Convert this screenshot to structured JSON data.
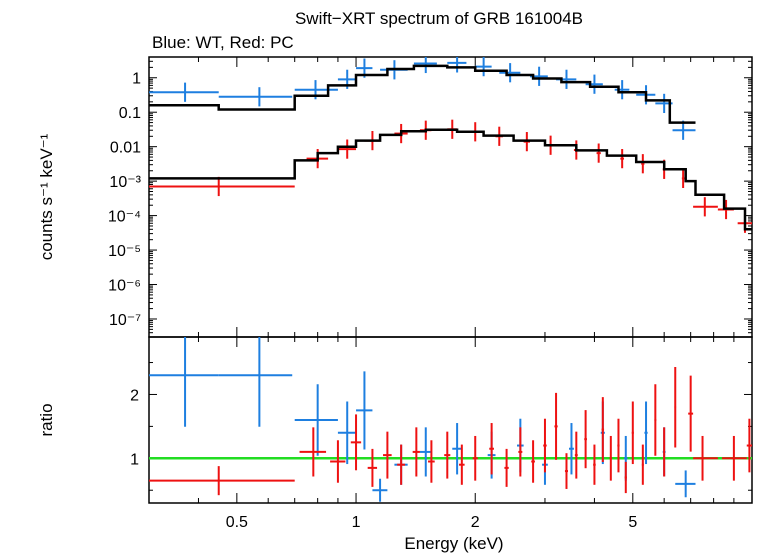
{
  "chart_data": {
    "type": "scatter",
    "title": "Swift−XRT spectrum of GRB 161004B",
    "subtitle": "Blue: WT, Red: PC",
    "xlabel": "Energy (keV)",
    "xscale": "log",
    "xlim": [
      0.3,
      10
    ],
    "xticks": [
      {
        "value": 0.5,
        "label": "0.5"
      },
      {
        "value": 1,
        "label": "1"
      },
      {
        "value": 2,
        "label": "2"
      },
      {
        "value": 5,
        "label": "5"
      }
    ],
    "colors": {
      "wt": "#1e7fe0",
      "pc": "#ee1111",
      "model": "#000000",
      "unity": "#22dd22"
    },
    "panels": {
      "spectrum": {
        "ylabel": "counts s⁻¹ keV⁻¹",
        "yscale": "log",
        "ylim": [
          3e-08,
          4
        ],
        "yticks": [
          {
            "value": 1,
            "label": "1"
          },
          {
            "value": 0.1,
            "label": "0.1"
          },
          {
            "value": 0.01,
            "label": "0.01"
          },
          {
            "value": 0.001,
            "label": "10⁻³"
          },
          {
            "value": 0.0001,
            "label": "10⁻⁴"
          },
          {
            "value": 1e-05,
            "label": "10⁻⁵"
          },
          {
            "value": 1e-06,
            "label": "10⁻⁶"
          },
          {
            "value": 1e-07,
            "label": "10⁻⁷"
          }
        ],
        "series": [
          {
            "name": "WT",
            "color": "#1e7fe0",
            "points": [
              {
                "x": 0.37,
                "xlo": 0.3,
                "xhi": 0.45,
                "y": 0.38
              },
              {
                "x": 0.57,
                "xlo": 0.45,
                "xhi": 0.69,
                "y": 0.28
              },
              {
                "x": 0.79,
                "xlo": 0.7,
                "xhi": 0.9,
                "y": 0.45
              },
              {
                "x": 0.95,
                "xlo": 0.9,
                "xhi": 1.0,
                "y": 0.9
              },
              {
                "x": 1.05,
                "xlo": 1.0,
                "xhi": 1.1,
                "y": 1.9
              },
              {
                "x": 1.25,
                "xlo": 1.15,
                "xhi": 1.35,
                "y": 1.7
              },
              {
                "x": 1.5,
                "xlo": 1.4,
                "xhi": 1.6,
                "y": 2.6
              },
              {
                "x": 1.8,
                "xlo": 1.7,
                "xhi": 1.9,
                "y": 2.7
              },
              {
                "x": 2.1,
                "xlo": 2.0,
                "xhi": 2.2,
                "y": 2.1
              },
              {
                "x": 2.45,
                "xlo": 2.3,
                "xhi": 2.6,
                "y": 1.4
              },
              {
                "x": 2.9,
                "xlo": 2.75,
                "xhi": 3.05,
                "y": 1.1
              },
              {
                "x": 3.4,
                "xlo": 3.2,
                "xhi": 3.6,
                "y": 0.9
              },
              {
                "x": 4.0,
                "xlo": 3.8,
                "xhi": 4.2,
                "y": 0.65
              },
              {
                "x": 4.7,
                "xlo": 4.5,
                "xhi": 4.9,
                "y": 0.45
              },
              {
                "x": 5.4,
                "xlo": 5.1,
                "xhi": 5.7,
                "y": 0.32
              },
              {
                "x": 6.0,
                "xlo": 5.7,
                "xhi": 6.3,
                "y": 0.18
              },
              {
                "x": 6.7,
                "xlo": 6.3,
                "xhi": 7.2,
                "y": 0.03
              }
            ]
          },
          {
            "name": "PC",
            "color": "#ee1111",
            "points": [
              {
                "x": 0.45,
                "xlo": 0.3,
                "xhi": 0.7,
                "y": 0.0007
              },
              {
                "x": 0.8,
                "xlo": 0.75,
                "xhi": 0.85,
                "y": 0.0045
              },
              {
                "x": 0.95,
                "xlo": 0.9,
                "xhi": 1.0,
                "y": 0.0085
              },
              {
                "x": 1.1,
                "xlo": 1.05,
                "xhi": 1.15,
                "y": 0.015
              },
              {
                "x": 1.3,
                "xlo": 1.25,
                "xhi": 1.35,
                "y": 0.024
              },
              {
                "x": 1.5,
                "xlo": 1.45,
                "xhi": 1.55,
                "y": 0.03
              },
              {
                "x": 1.75,
                "xlo": 1.7,
                "xhi": 1.8,
                "y": 0.032
              },
              {
                "x": 2.0,
                "xlo": 1.95,
                "xhi": 2.05,
                "y": 0.027
              },
              {
                "x": 2.3,
                "xlo": 2.25,
                "xhi": 2.35,
                "y": 0.02
              },
              {
                "x": 2.7,
                "xlo": 2.65,
                "xhi": 2.75,
                "y": 0.014
              },
              {
                "x": 3.1,
                "xlo": 3.05,
                "xhi": 3.15,
                "y": 0.011
              },
              {
                "x": 3.6,
                "xlo": 3.55,
                "xhi": 3.65,
                "y": 0.008
              },
              {
                "x": 4.1,
                "xlo": 4.05,
                "xhi": 4.15,
                "y": 0.0065
              },
              {
                "x": 4.7,
                "xlo": 4.65,
                "xhi": 4.75,
                "y": 0.0045
              },
              {
                "x": 5.3,
                "xlo": 5.25,
                "xhi": 5.35,
                "y": 0.0032
              },
              {
                "x": 6.0,
                "xlo": 5.95,
                "xhi": 6.05,
                "y": 0.0022
              },
              {
                "x": 6.7,
                "xlo": 6.65,
                "xhi": 6.75,
                "y": 0.0012
              },
              {
                "x": 7.6,
                "xlo": 7.1,
                "xhi": 8.2,
                "y": 0.00018
              },
              {
                "x": 8.6,
                "xlo": 8.2,
                "xhi": 9.0,
                "y": 0.00015
              },
              {
                "x": 9.6,
                "xlo": 9.2,
                "xhi": 10.0,
                "y": 6e-05
              }
            ]
          }
        ]
      },
      "ratio": {
        "ylabel": "ratio",
        "yscale": "linear",
        "ylim": [
          0.3,
          2.9
        ],
        "yticks": [
          {
            "value": 1,
            "label": "1"
          },
          {
            "value": 2,
            "label": "2"
          }
        ],
        "reference_line": 1,
        "series": [
          {
            "name": "WT",
            "color": "#1e7fe0",
            "points": [
              {
                "x": 0.37,
                "xlo": 0.3,
                "xhi": 0.45,
                "y": 2.3
              },
              {
                "x": 0.57,
                "xlo": 0.45,
                "xhi": 0.69,
                "y": 2.3
              },
              {
                "x": 0.8,
                "xlo": 0.7,
                "xhi": 0.9,
                "y": 1.6
              },
              {
                "x": 0.95,
                "xlo": 0.9,
                "xhi": 1.0,
                "y": 1.4
              },
              {
                "x": 1.05,
                "xlo": 1.0,
                "xhi": 1.1,
                "y": 1.75
              },
              {
                "x": 1.15,
                "xlo": 1.1,
                "xhi": 1.2,
                "y": 0.5
              },
              {
                "x": 1.3,
                "xlo": 1.25,
                "xhi": 1.35,
                "y": 0.9
              },
              {
                "x": 1.5,
                "xlo": 1.45,
                "xhi": 1.55,
                "y": 1.1
              },
              {
                "x": 1.8,
                "xlo": 1.75,
                "xhi": 1.85,
                "y": 1.15
              },
              {
                "x": 2.2,
                "xlo": 2.15,
                "xhi": 2.25,
                "y": 1.05
              },
              {
                "x": 2.6,
                "xlo": 2.55,
                "xhi": 2.65,
                "y": 1.2
              },
              {
                "x": 3.0,
                "xlo": 2.95,
                "xhi": 3.05,
                "y": 0.9
              },
              {
                "x": 3.5,
                "xlo": 3.45,
                "xhi": 3.55,
                "y": 1.15
              },
              {
                "x": 4.2,
                "xlo": 4.15,
                "xhi": 4.25,
                "y": 1.4
              },
              {
                "x": 4.8,
                "xlo": 4.75,
                "xhi": 4.85,
                "y": 1.0
              },
              {
                "x": 5.4,
                "xlo": 5.35,
                "xhi": 5.45,
                "y": 1.4
              },
              {
                "x": 6.0,
                "xlo": 5.95,
                "xhi": 6.05,
                "y": 1.1
              },
              {
                "x": 6.8,
                "xlo": 6.4,
                "xhi": 7.2,
                "y": 0.6
              }
            ]
          },
          {
            "name": "PC",
            "color": "#ee1111",
            "points": [
              {
                "x": 0.45,
                "xlo": 0.3,
                "xhi": 0.7,
                "y": 0.65
              },
              {
                "x": 0.78,
                "xlo": 0.72,
                "xhi": 0.84,
                "y": 1.1
              },
              {
                "x": 0.9,
                "xlo": 0.86,
                "xhi": 0.94,
                "y": 0.95
              },
              {
                "x": 1.0,
                "xlo": 0.97,
                "xhi": 1.03,
                "y": 1.25
              },
              {
                "x": 1.1,
                "xlo": 1.07,
                "xhi": 1.13,
                "y": 0.85
              },
              {
                "x": 1.2,
                "xlo": 1.17,
                "xhi": 1.23,
                "y": 1.05
              },
              {
                "x": 1.3,
                "xlo": 1.27,
                "xhi": 1.33,
                "y": 0.9
              },
              {
                "x": 1.42,
                "xlo": 1.39,
                "xhi": 1.45,
                "y": 1.1
              },
              {
                "x": 1.55,
                "xlo": 1.52,
                "xhi": 1.58,
                "y": 0.95
              },
              {
                "x": 1.7,
                "xlo": 1.67,
                "xhi": 1.73,
                "y": 1.05
              },
              {
                "x": 1.85,
                "xlo": 1.82,
                "xhi": 1.88,
                "y": 0.9
              },
              {
                "x": 2.0,
                "xlo": 1.97,
                "xhi": 2.03,
                "y": 1.0
              },
              {
                "x": 2.2,
                "xlo": 2.17,
                "xhi": 2.23,
                "y": 1.15
              },
              {
                "x": 2.4,
                "xlo": 2.37,
                "xhi": 2.43,
                "y": 0.85
              },
              {
                "x": 2.6,
                "xlo": 2.57,
                "xhi": 2.63,
                "y": 1.1
              },
              {
                "x": 2.8,
                "xlo": 2.77,
                "xhi": 2.83,
                "y": 0.95
              },
              {
                "x": 3.0,
                "xlo": 2.97,
                "xhi": 3.03,
                "y": 1.2
              },
              {
                "x": 3.2,
                "xlo": 3.17,
                "xhi": 3.23,
                "y": 1.5
              },
              {
                "x": 3.4,
                "xlo": 3.37,
                "xhi": 3.43,
                "y": 0.8
              },
              {
                "x": 3.6,
                "xlo": 3.57,
                "xhi": 3.63,
                "y": 1.05
              },
              {
                "x": 3.8,
                "xlo": 3.77,
                "xhi": 3.83,
                "y": 1.3
              },
              {
                "x": 4.0,
                "xlo": 3.97,
                "xhi": 4.03,
                "y": 0.9
              },
              {
                "x": 4.2,
                "xlo": 4.17,
                "xhi": 4.23,
                "y": 1.45
              },
              {
                "x": 4.4,
                "xlo": 4.37,
                "xhi": 4.43,
                "y": 1.0
              },
              {
                "x": 4.6,
                "xlo": 4.57,
                "xhi": 4.63,
                "y": 1.2
              },
              {
                "x": 4.8,
                "xlo": 4.77,
                "xhi": 4.83,
                "y": 0.7
              },
              {
                "x": 5.0,
                "xlo": 4.97,
                "xhi": 5.03,
                "y": 1.4
              },
              {
                "x": 5.3,
                "xlo": 5.27,
                "xhi": 5.33,
                "y": 0.9
              },
              {
                "x": 5.7,
                "xlo": 5.67,
                "xhi": 5.73,
                "y": 1.6
              },
              {
                "x": 6.0,
                "xlo": 5.97,
                "xhi": 6.03,
                "y": 1.1
              },
              {
                "x": 6.4,
                "xlo": 6.37,
                "xhi": 6.43,
                "y": 1.8
              },
              {
                "x": 7.0,
                "xlo": 6.9,
                "xhi": 7.1,
                "y": 1.7
              },
              {
                "x": 7.5,
                "xlo": 7.1,
                "xhi": 8.2,
                "y": 1.0
              },
              {
                "x": 9.0,
                "xlo": 8.4,
                "xhi": 9.7,
                "y": 1.0
              },
              {
                "x": 9.85,
                "xlo": 9.7,
                "xhi": 10.0,
                "y": 1.2
              }
            ]
          }
        ]
      }
    },
    "model": {
      "name": "model",
      "WT": [
        {
          "x0": 0.3,
          "x1": 0.45,
          "y": 0.16
        },
        {
          "x0": 0.45,
          "x1": 0.7,
          "y": 0.12
        },
        {
          "x0": 0.7,
          "x1": 0.85,
          "y": 0.3
        },
        {
          "x0": 0.85,
          "x1": 1.0,
          "y": 0.6
        },
        {
          "x0": 1.0,
          "x1": 1.2,
          "y": 1.2
        },
        {
          "x0": 1.2,
          "x1": 1.4,
          "y": 1.8
        },
        {
          "x0": 1.4,
          "x1": 1.7,
          "y": 2.2
        },
        {
          "x0": 1.7,
          "x1": 2.0,
          "y": 2.0
        },
        {
          "x0": 2.0,
          "x1": 2.4,
          "y": 1.6
        },
        {
          "x0": 2.4,
          "x1": 2.8,
          "y": 1.2
        },
        {
          "x0": 2.8,
          "x1": 3.3,
          "y": 0.95
        },
        {
          "x0": 3.3,
          "x1": 3.9,
          "y": 0.75
        },
        {
          "x0": 3.9,
          "x1": 4.6,
          "y": 0.55
        },
        {
          "x0": 4.6,
          "x1": 5.4,
          "y": 0.38
        },
        {
          "x0": 5.4,
          "x1": 6.2,
          "y": 0.22
        },
        {
          "x0": 6.2,
          "x1": 7.2,
          "y": 0.05
        }
      ],
      "PC": [
        {
          "x0": 0.3,
          "x1": 0.7,
          "y": 0.0012
        },
        {
          "x0": 0.7,
          "x1": 0.8,
          "y": 0.004
        },
        {
          "x0": 0.8,
          "x1": 0.9,
          "y": 0.0065
        },
        {
          "x0": 0.9,
          "x1": 1.0,
          "y": 0.01
        },
        {
          "x0": 1.0,
          "x1": 1.15,
          "y": 0.015
        },
        {
          "x0": 1.15,
          "x1": 1.3,
          "y": 0.022
        },
        {
          "x0": 1.3,
          "x1": 1.5,
          "y": 0.028
        },
        {
          "x0": 1.5,
          "x1": 1.8,
          "y": 0.031
        },
        {
          "x0": 1.8,
          "x1": 2.1,
          "y": 0.027
        },
        {
          "x0": 2.1,
          "x1": 2.5,
          "y": 0.021
        },
        {
          "x0": 2.5,
          "x1": 3.0,
          "y": 0.015
        },
        {
          "x0": 3.0,
          "x1": 3.6,
          "y": 0.011
        },
        {
          "x0": 3.6,
          "x1": 4.3,
          "y": 0.0078
        },
        {
          "x0": 4.3,
          "x1": 5.1,
          "y": 0.0055
        },
        {
          "x0": 5.1,
          "x1": 6.0,
          "y": 0.0036
        },
        {
          "x0": 6.0,
          "x1": 6.8,
          "y": 0.0022
        },
        {
          "x0": 6.8,
          "x1": 7.2,
          "y": 0.001
        },
        {
          "x0": 7.2,
          "x1": 8.5,
          "y": 0.0004
        },
        {
          "x0": 8.5,
          "x1": 9.6,
          "y": 0.00016
        },
        {
          "x0": 9.6,
          "x1": 10.0,
          "y": 4e-05
        }
      ]
    }
  }
}
